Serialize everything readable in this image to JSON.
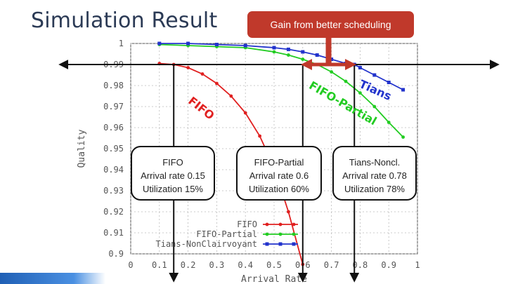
{
  "slide": {
    "title": "Simulation Result",
    "callout": "Gain from better scheduling"
  },
  "annotations": [
    {
      "name": "FIFO",
      "lines": [
        "FIFO",
        "Arrival rate 0.15",
        "Utilization 15%"
      ]
    },
    {
      "name": "FIFO-Partial",
      "lines": [
        "FIFO-Partial",
        "Arrival rate 0.6",
        "Utilization 60%"
      ]
    },
    {
      "name": "Tians-Noncl",
      "lines": [
        "Tians-Noncl.",
        "Arrival rate 0.78",
        "Utilization 78%"
      ]
    }
  ],
  "curve_labels": {
    "fifo": "FIFO",
    "fifo_partial": "FIFO-Partial",
    "tians": "Tians"
  },
  "colors": {
    "fifo": "#e02020",
    "fifo_partial": "#22cc22",
    "tians": "#2233cc",
    "callout": "#c0392b",
    "arrow": "#c0392b"
  },
  "chart_data": {
    "type": "line",
    "title": "",
    "xlabel": "Arrival Rate",
    "ylabel": "Quality",
    "xlim": [
      0,
      1
    ],
    "ylim": [
      0.9,
      1
    ],
    "x_ticks": [
      "0",
      "0.1",
      "0.2",
      "0.3",
      "0.4",
      "0.5",
      "0.6",
      "0.7",
      "0.8",
      "0.9",
      "1"
    ],
    "y_ticks": [
      "0.9",
      "0.91",
      "0.92",
      "0.93",
      "0.94",
      "0.95",
      "0.96",
      "0.97",
      "0.98",
      "0.99",
      "1"
    ],
    "reference_lines": {
      "horizontal_quality": 0.99,
      "vertical_arrival_rates": [
        0.15,
        0.6,
        0.78
      ]
    },
    "gain_arrow_between": [
      0.6,
      0.78
    ],
    "series": [
      {
        "name": "FIFO",
        "key": "fifo",
        "x": [
          0.1,
          0.15,
          0.2,
          0.25,
          0.3,
          0.35,
          0.4,
          0.45,
          0.5,
          0.55,
          0.6
        ],
        "values": [
          0.9905,
          0.99,
          0.9885,
          0.9855,
          0.981,
          0.975,
          0.967,
          0.956,
          0.941,
          0.92,
          0.895
        ]
      },
      {
        "name": "FIFO-Partial",
        "key": "fifo_partial",
        "x": [
          0.1,
          0.2,
          0.3,
          0.4,
          0.5,
          0.55,
          0.6,
          0.65,
          0.7,
          0.75,
          0.8,
          0.85,
          0.9,
          0.95
        ],
        "values": [
          0.9995,
          0.999,
          0.9985,
          0.998,
          0.996,
          0.9945,
          0.9925,
          0.99,
          0.9865,
          0.982,
          0.9765,
          0.97,
          0.9625,
          0.9555
        ]
      },
      {
        "name": "Tians-NonClairvoyant",
        "key": "tians",
        "x": [
          0.1,
          0.2,
          0.3,
          0.4,
          0.5,
          0.55,
          0.6,
          0.65,
          0.7,
          0.75,
          0.78,
          0.8,
          0.85,
          0.9,
          0.95
        ],
        "values": [
          1.0,
          1.0,
          0.9995,
          0.999,
          0.998,
          0.9972,
          0.996,
          0.9945,
          0.9925,
          0.9905,
          0.99,
          0.9885,
          0.985,
          0.9815,
          0.978
        ]
      }
    ],
    "legend": {
      "placement": "bottom-right",
      "entries": [
        "FIFO",
        "FIFO-Partial",
        "Tians-NonClairvoyant"
      ]
    }
  }
}
